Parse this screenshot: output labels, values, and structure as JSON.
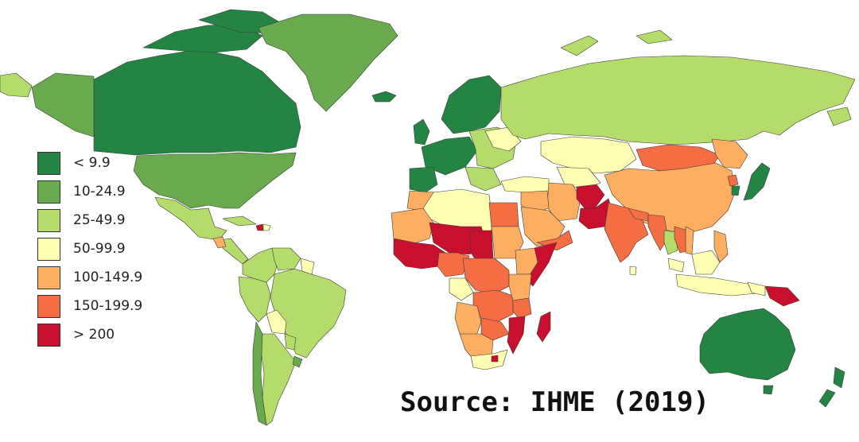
{
  "legend": {
    "items": [
      {
        "label": "< 9.9",
        "color": "#238443"
      },
      {
        "label": "10-24.9",
        "color": "#6aaa4f"
      },
      {
        "label": "25-49.9",
        "color": "#b4dc6a"
      },
      {
        "label": "50-99.9",
        "color": "#ffffb3"
      },
      {
        "label": "100-149.9",
        "color": "#fdae61"
      },
      {
        "label": "150-199.9",
        "color": "#f46d43"
      },
      {
        "label": "> 200",
        "color": "#c8102e"
      }
    ]
  },
  "source": {
    "text": "Source: IHME (2019)"
  }
}
